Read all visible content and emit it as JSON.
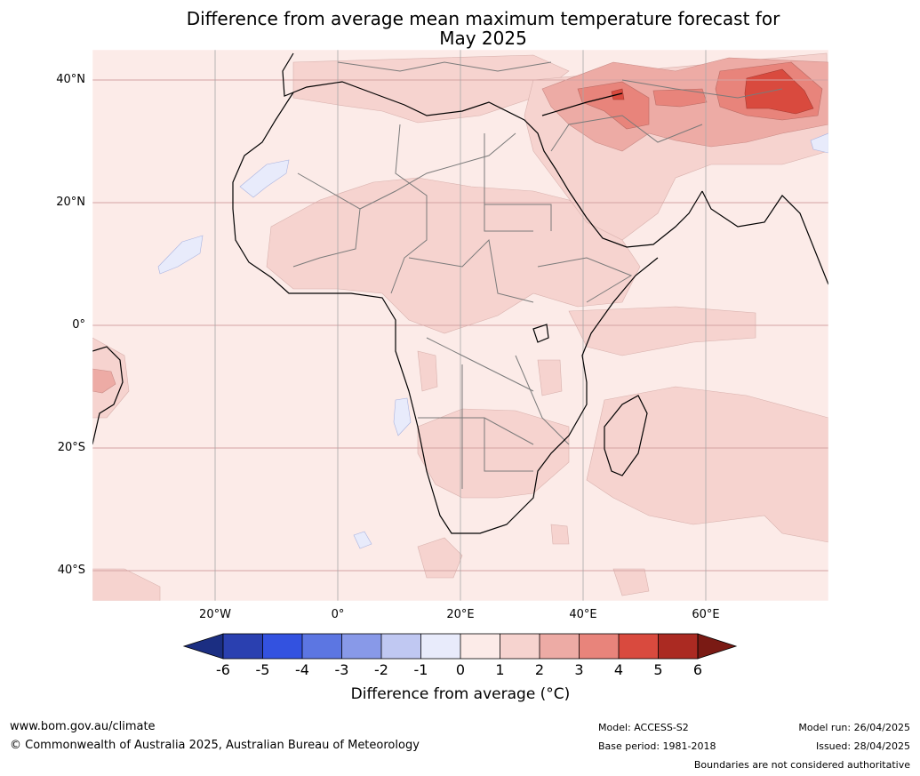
{
  "title_line1": "Difference from average mean maximum temperature forecast for",
  "title_line2": "May 2025",
  "map": {
    "lat_labels": [
      "40°N",
      "20°N",
      "0°",
      "20°S",
      "40°S"
    ],
    "lon_labels": [
      "20°W",
      "0°",
      "20°E",
      "40°E",
      "60°E"
    ]
  },
  "colorbar": {
    "ticks": [
      "-6",
      "-5",
      "-4",
      "-3",
      "-2",
      "-1",
      "0",
      "1",
      "2",
      "3",
      "4",
      "5",
      "6"
    ],
    "label": "Difference from average (°C)",
    "colors": [
      "#1b2e82",
      "#2a40b0",
      "#3352e0",
      "#5c76e2",
      "#8899e8",
      "#c0c8f2",
      "#e8ebfb",
      "#fcebe8",
      "#f6d3cf",
      "#edaba5",
      "#e8847b",
      "#d94a3e",
      "#ab2a22",
      "#7a1a14"
    ]
  },
  "footer": {
    "website": "www.bom.gov.au/climate",
    "copyright": "© Commonwealth of Australia 2025, Australian Bureau of Meteorology",
    "model": "Model: ACCESS-S2",
    "base_period": "Base period: 1981-2018",
    "model_run": "Model run: 26/04/2025",
    "issued": "Issued: 28/04/2025",
    "disclaimer": "Boundaries are not considered authoritative"
  }
}
